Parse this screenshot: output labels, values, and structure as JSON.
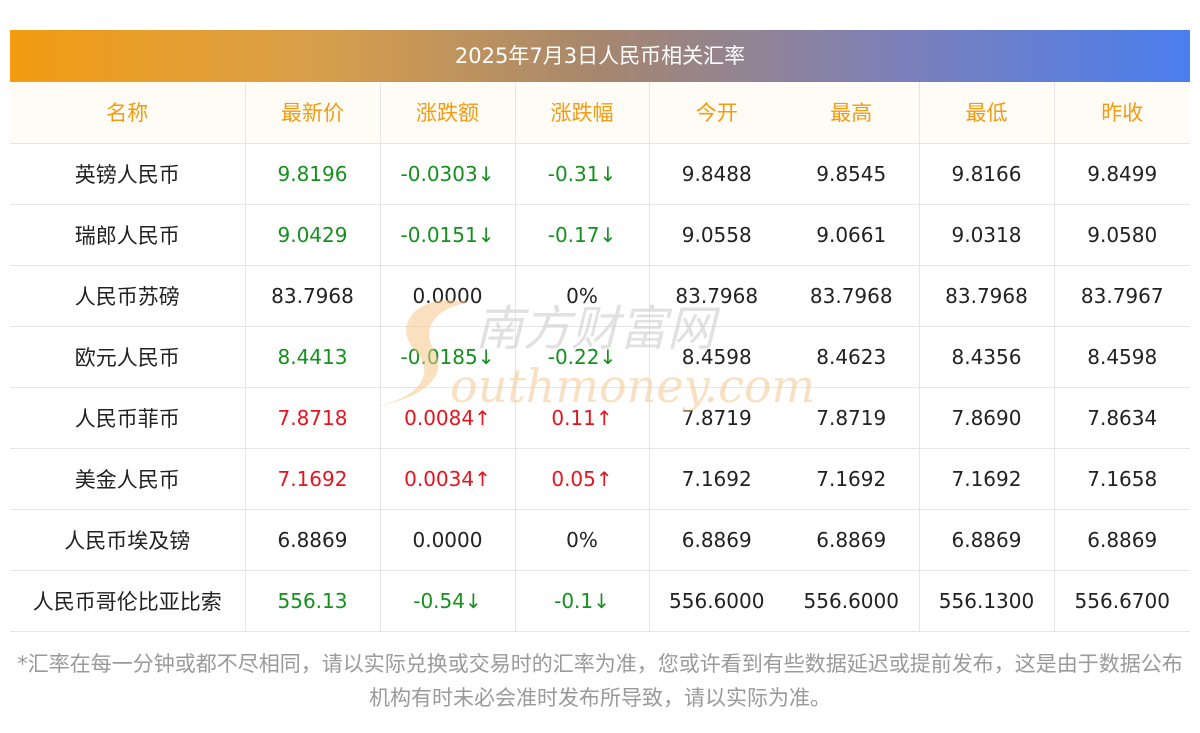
{
  "title": "2025年7月3日人民币相关汇率",
  "headers": [
    "名称",
    "最新价",
    "涨跌额",
    "涨跌幅",
    "今开",
    "最高",
    "最低",
    "昨收"
  ],
  "rows": [
    {
      "name": "英镑人民币",
      "latest": "9.8196",
      "change": "-0.0303↓",
      "pct": "-0.31↓",
      "open": "9.8488",
      "high": "9.8545",
      "low": "9.8166",
      "prev": "9.8499",
      "trend": "down"
    },
    {
      "name": "瑞郎人民币",
      "latest": "9.0429",
      "change": "-0.0151↓",
      "pct": "-0.17↓",
      "open": "9.0558",
      "high": "9.0661",
      "low": "9.0318",
      "prev": "9.0580",
      "trend": "down"
    },
    {
      "name": "人民币苏磅",
      "latest": "83.7968",
      "change": "0.0000",
      "pct": "0%",
      "open": "83.7968",
      "high": "83.7968",
      "low": "83.7968",
      "prev": "83.7967",
      "trend": "flat"
    },
    {
      "name": "欧元人民币",
      "latest": "8.4413",
      "change": "-0.0185↓",
      "pct": "-0.22↓",
      "open": "8.4598",
      "high": "8.4623",
      "low": "8.4356",
      "prev": "8.4598",
      "trend": "down"
    },
    {
      "name": "人民币菲币",
      "latest": "7.8718",
      "change": "0.0084↑",
      "pct": "0.11↑",
      "open": "7.8719",
      "high": "7.8719",
      "low": "7.8690",
      "prev": "7.8634",
      "trend": "up"
    },
    {
      "name": "美金人民币",
      "latest": "7.1692",
      "change": "0.0034↑",
      "pct": "0.05↑",
      "open": "7.1692",
      "high": "7.1692",
      "low": "7.1692",
      "prev": "7.1658",
      "trend": "up"
    },
    {
      "name": "人民币埃及镑",
      "latest": "6.8869",
      "change": "0.0000",
      "pct": "0%",
      "open": "6.8869",
      "high": "6.8869",
      "low": "6.8869",
      "prev": "6.8869",
      "trend": "flat"
    },
    {
      "name": "人民币哥伦比亚比索",
      "latest": "556.13",
      "change": "-0.54↓",
      "pct": "-0.1↓",
      "open": "556.6000",
      "high": "556.6000",
      "low": "556.1300",
      "prev": "556.6700",
      "trend": "down"
    }
  ],
  "note": "*汇率在每一分钟或都不尽相同，请以实际兑换或交易时的汇率为准，您或许看到有些数据延迟或提前发布，这是由于数据公布机构有时未必会准时发布所导致，请以实际为准。",
  "watermark": {
    "cn": "南方财富网",
    "en": "outhmoney.com"
  },
  "colors": {
    "up": "#e6141e",
    "down": "#15901e",
    "header_text": "#f39c12",
    "note": "#9a9a9a"
  }
}
